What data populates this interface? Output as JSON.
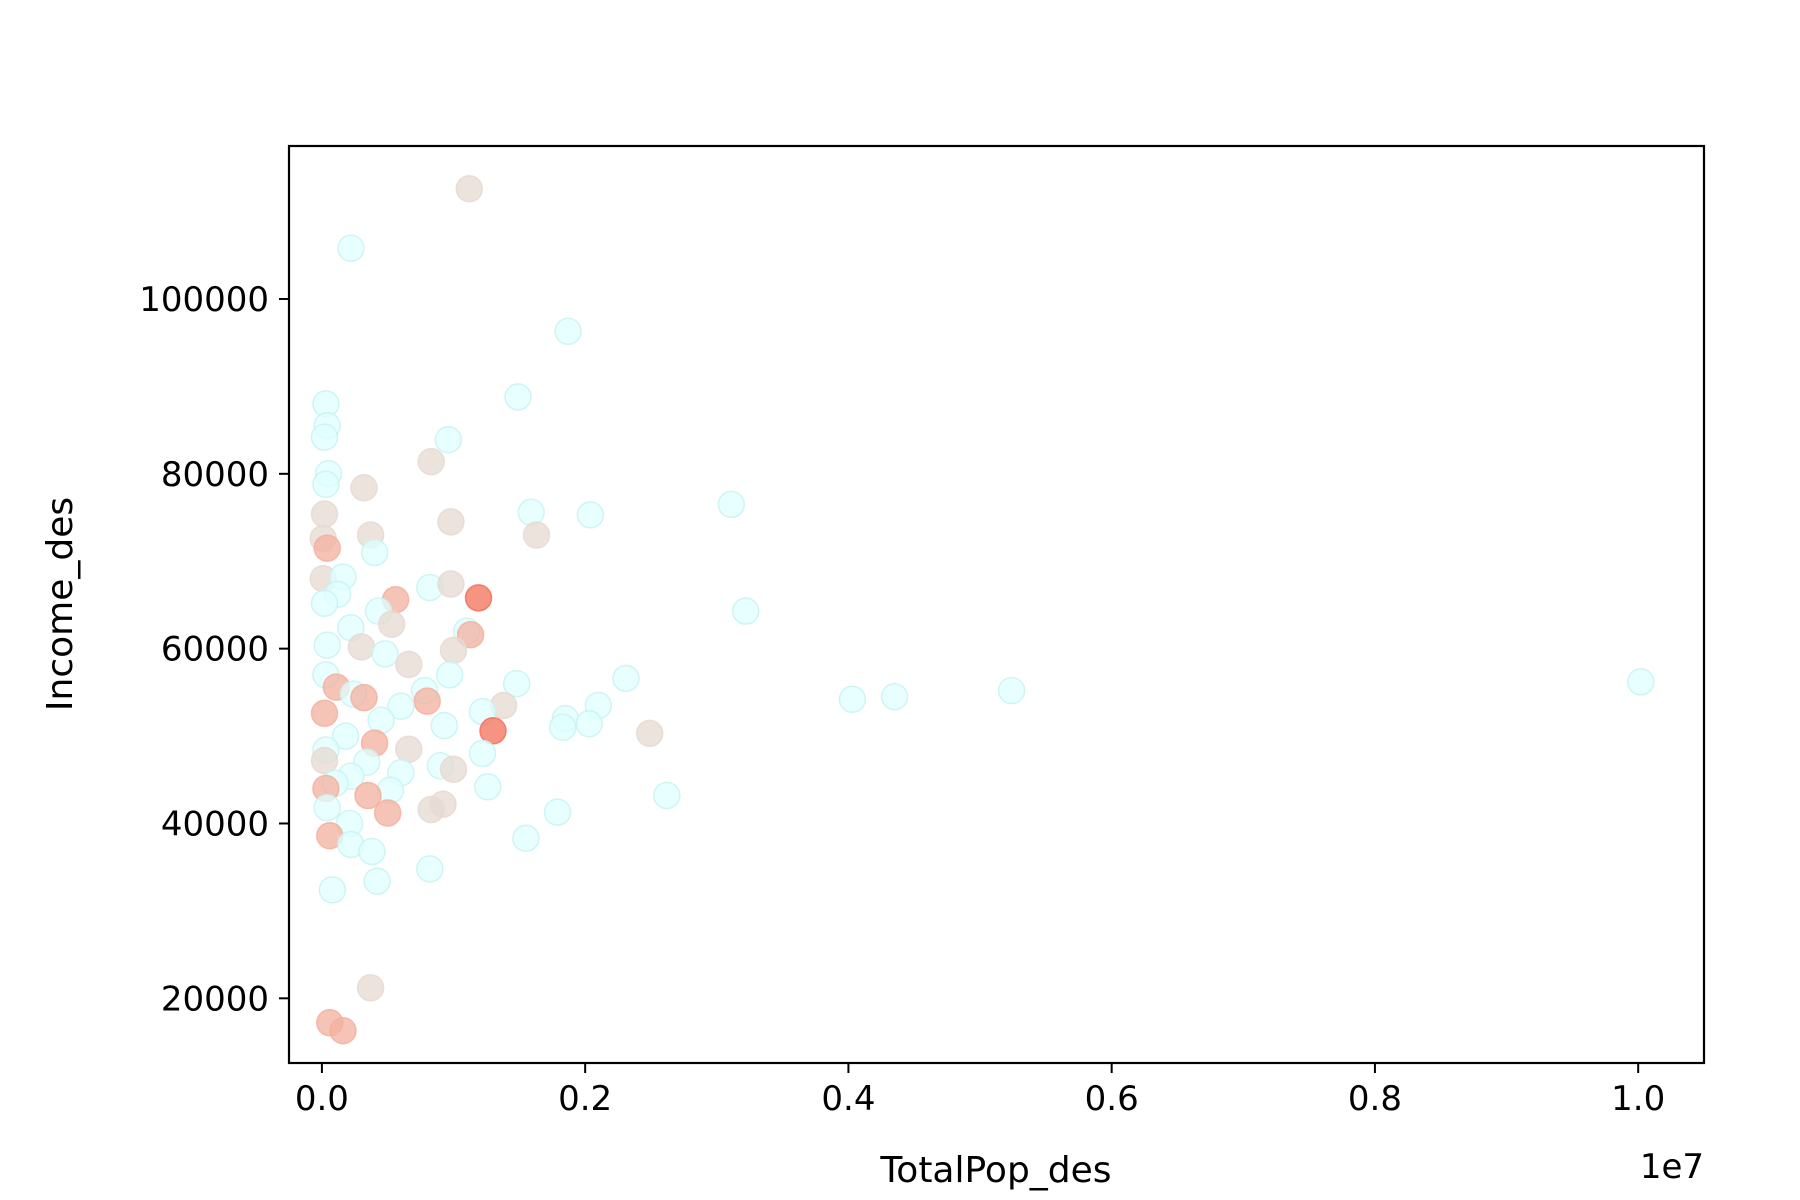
{
  "chart_data": {
    "type": "scatter",
    "title": "",
    "xlabel": "TotalPop_des",
    "ylabel": "Income_des",
    "x_offset_label": "1e7",
    "x_scale_multiplier": 10000000,
    "xlim": [
      -0.025,
      1.05
    ],
    "ylim": [
      12600,
      117500
    ],
    "x_ticks": [
      0.0,
      0.2,
      0.4,
      0.6,
      0.8,
      1.0
    ],
    "x_tick_labels": [
      "0.0",
      "0.2",
      "0.4",
      "0.6",
      "0.8",
      "1.0"
    ],
    "y_ticks": [
      20000,
      40000,
      60000,
      80000,
      100000
    ],
    "y_tick_labels": [
      "20000",
      "40000",
      "60000",
      "80000",
      "100000"
    ],
    "grid": false,
    "legend": "none",
    "colors": {
      "light": "#e0ffff",
      "mid": "#e6d9d2",
      "salmon": "#f3b09f",
      "red": "#f2705a",
      "light_edge": "#c8f2f2",
      "frame": "#000000"
    },
    "points": [
      {
        "x": 0.112,
        "y": 112600,
        "c": "mid"
      },
      {
        "x": 0.022,
        "y": 105800,
        "c": "light"
      },
      {
        "x": 0.187,
        "y": 96300,
        "c": "light"
      },
      {
        "x": 0.149,
        "y": 88800,
        "c": "light"
      },
      {
        "x": 0.003,
        "y": 88000,
        "c": "light"
      },
      {
        "x": 0.004,
        "y": 85500,
        "c": "light"
      },
      {
        "x": 0.002,
        "y": 84200,
        "c": "light"
      },
      {
        "x": 0.096,
        "y": 83900,
        "c": "light"
      },
      {
        "x": 0.083,
        "y": 81400,
        "c": "mid"
      },
      {
        "x": 0.005,
        "y": 80000,
        "c": "light"
      },
      {
        "x": 0.003,
        "y": 78800,
        "c": "light"
      },
      {
        "x": 0.032,
        "y": 78400,
        "c": "mid"
      },
      {
        "x": 0.311,
        "y": 76500,
        "c": "light"
      },
      {
        "x": 0.159,
        "y": 75600,
        "c": "light"
      },
      {
        "x": 0.002,
        "y": 75400,
        "c": "mid"
      },
      {
        "x": 0.204,
        "y": 75300,
        "c": "light"
      },
      {
        "x": 0.098,
        "y": 74500,
        "c": "mid"
      },
      {
        "x": 0.037,
        "y": 73000,
        "c": "mid"
      },
      {
        "x": 0.163,
        "y": 73000,
        "c": "mid"
      },
      {
        "x": 0.001,
        "y": 72600,
        "c": "mid"
      },
      {
        "x": 0.004,
        "y": 71500,
        "c": "salmon"
      },
      {
        "x": 0.04,
        "y": 71000,
        "c": "light"
      },
      {
        "x": 0.001,
        "y": 68000,
        "c": "mid"
      },
      {
        "x": 0.016,
        "y": 68200,
        "c": "light"
      },
      {
        "x": 0.082,
        "y": 67000,
        "c": "light"
      },
      {
        "x": 0.098,
        "y": 67400,
        "c": "mid"
      },
      {
        "x": 0.012,
        "y": 66200,
        "c": "light"
      },
      {
        "x": 0.119,
        "y": 65800,
        "c": "red"
      },
      {
        "x": 0.056,
        "y": 65600,
        "c": "salmon"
      },
      {
        "x": 0.002,
        "y": 65200,
        "c": "light"
      },
      {
        "x": 0.043,
        "y": 64300,
        "c": "light"
      },
      {
        "x": 0.322,
        "y": 64300,
        "c": "light"
      },
      {
        "x": 0.053,
        "y": 62800,
        "c": "mid"
      },
      {
        "x": 0.022,
        "y": 62400,
        "c": "light"
      },
      {
        "x": 0.11,
        "y": 62000,
        "c": "light"
      },
      {
        "x": 0.113,
        "y": 61600,
        "c": "salmon"
      },
      {
        "x": 0.004,
        "y": 60400,
        "c": "light"
      },
      {
        "x": 0.03,
        "y": 60200,
        "c": "mid"
      },
      {
        "x": 0.1,
        "y": 59800,
        "c": "mid"
      },
      {
        "x": 0.048,
        "y": 59400,
        "c": "light"
      },
      {
        "x": 0.066,
        "y": 58200,
        "c": "mid"
      },
      {
        "x": 0.097,
        "y": 57000,
        "c": "light"
      },
      {
        "x": 0.003,
        "y": 57000,
        "c": "light"
      },
      {
        "x": 0.231,
        "y": 56600,
        "c": "light"
      },
      {
        "x": 1.002,
        "y": 56200,
        "c": "light"
      },
      {
        "x": 0.148,
        "y": 56000,
        "c": "light"
      },
      {
        "x": 0.011,
        "y": 55600,
        "c": "salmon"
      },
      {
        "x": 0.078,
        "y": 55200,
        "c": "light"
      },
      {
        "x": 0.524,
        "y": 55200,
        "c": "light"
      },
      {
        "x": 0.024,
        "y": 54800,
        "c": "light"
      },
      {
        "x": 0.435,
        "y": 54500,
        "c": "light"
      },
      {
        "x": 0.032,
        "y": 54400,
        "c": "salmon"
      },
      {
        "x": 0.403,
        "y": 54200,
        "c": "light"
      },
      {
        "x": 0.08,
        "y": 54000,
        "c": "salmon"
      },
      {
        "x": 0.138,
        "y": 53500,
        "c": "mid"
      },
      {
        "x": 0.21,
        "y": 53500,
        "c": "light"
      },
      {
        "x": 0.06,
        "y": 53400,
        "c": "light"
      },
      {
        "x": 0.122,
        "y": 52800,
        "c": "light"
      },
      {
        "x": 0.002,
        "y": 52600,
        "c": "salmon"
      },
      {
        "x": 0.185,
        "y": 52000,
        "c": "light"
      },
      {
        "x": 0.045,
        "y": 51800,
        "c": "light"
      },
      {
        "x": 0.203,
        "y": 51400,
        "c": "light"
      },
      {
        "x": 0.093,
        "y": 51200,
        "c": "light"
      },
      {
        "x": 0.183,
        "y": 51000,
        "c": "light"
      },
      {
        "x": 0.13,
        "y": 50600,
        "c": "red"
      },
      {
        "x": 0.249,
        "y": 50300,
        "c": "mid"
      },
      {
        "x": 0.018,
        "y": 50000,
        "c": "light"
      },
      {
        "x": 0.04,
        "y": 49200,
        "c": "salmon"
      },
      {
        "x": 0.066,
        "y": 48500,
        "c": "mid"
      },
      {
        "x": 0.003,
        "y": 48400,
        "c": "light"
      },
      {
        "x": 0.122,
        "y": 48000,
        "c": "light"
      },
      {
        "x": 0.002,
        "y": 47200,
        "c": "mid"
      },
      {
        "x": 0.034,
        "y": 47000,
        "c": "light"
      },
      {
        "x": 0.09,
        "y": 46600,
        "c": "light"
      },
      {
        "x": 0.1,
        "y": 46200,
        "c": "mid"
      },
      {
        "x": 0.06,
        "y": 45800,
        "c": "light"
      },
      {
        "x": 0.022,
        "y": 45400,
        "c": "light"
      },
      {
        "x": 0.01,
        "y": 44600,
        "c": "light"
      },
      {
        "x": 0.126,
        "y": 44200,
        "c": "light"
      },
      {
        "x": 0.003,
        "y": 44000,
        "c": "salmon"
      },
      {
        "x": 0.052,
        "y": 43800,
        "c": "light"
      },
      {
        "x": 0.262,
        "y": 43200,
        "c": "light"
      },
      {
        "x": 0.035,
        "y": 43200,
        "c": "salmon"
      },
      {
        "x": 0.092,
        "y": 42200,
        "c": "mid"
      },
      {
        "x": 0.004,
        "y": 41800,
        "c": "light"
      },
      {
        "x": 0.083,
        "y": 41600,
        "c": "mid"
      },
      {
        "x": 0.179,
        "y": 41300,
        "c": "light"
      },
      {
        "x": 0.05,
        "y": 41200,
        "c": "salmon"
      },
      {
        "x": 0.021,
        "y": 40000,
        "c": "light"
      },
      {
        "x": 0.006,
        "y": 38600,
        "c": "salmon"
      },
      {
        "x": 0.155,
        "y": 38300,
        "c": "light"
      },
      {
        "x": 0.022,
        "y": 37600,
        "c": "light"
      },
      {
        "x": 0.038,
        "y": 36800,
        "c": "light"
      },
      {
        "x": 0.082,
        "y": 34800,
        "c": "light"
      },
      {
        "x": 0.042,
        "y": 33400,
        "c": "light"
      },
      {
        "x": 0.008,
        "y": 32400,
        "c": "light"
      },
      {
        "x": 0.037,
        "y": 21200,
        "c": "mid"
      },
      {
        "x": 0.006,
        "y": 17200,
        "c": "salmon"
      },
      {
        "x": 0.016,
        "y": 16300,
        "c": "salmon"
      }
    ]
  }
}
